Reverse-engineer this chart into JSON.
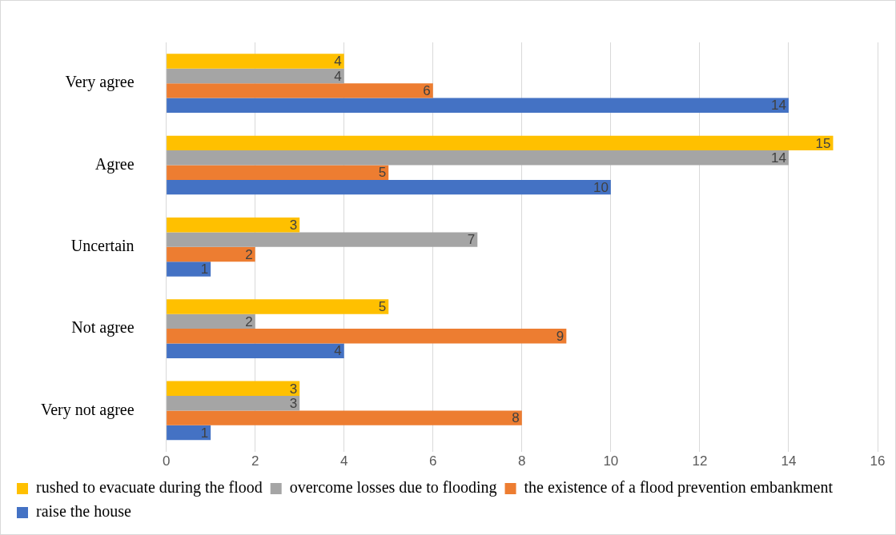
{
  "chart_data": {
    "type": "bar",
    "orientation": "horizontal",
    "categories": [
      "Very agree",
      "Agree",
      "Uncertain",
      "Not agree",
      "Very not agree"
    ],
    "series": [
      {
        "name": "rushed to evacuate during the flood",
        "color": "#ffc000",
        "values": [
          4,
          15,
          3,
          5,
          3
        ]
      },
      {
        "name": "overcome losses due to flooding",
        "color": "#a5a5a5",
        "values": [
          4,
          14,
          7,
          2,
          3
        ]
      },
      {
        "name": "the existence of a flood prevention embankment",
        "color": "#ed7d31",
        "values": [
          6,
          5,
          2,
          9,
          8
        ]
      },
      {
        "name": "raise the house",
        "color": "#4472c4",
        "values": [
          14,
          10,
          1,
          4,
          1
        ]
      }
    ],
    "xlim": [
      0,
      16
    ],
    "xticks": [
      0,
      2,
      4,
      6,
      8,
      10,
      12,
      14,
      16
    ],
    "grid": "x",
    "legend": "bottom",
    "data_labels": true
  }
}
